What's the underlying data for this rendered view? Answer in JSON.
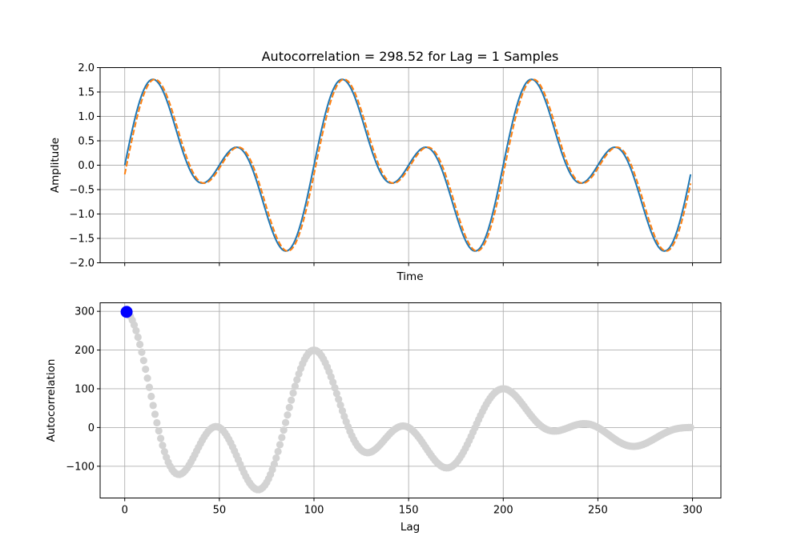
{
  "chart_data": [
    {
      "type": "line",
      "title": "Autocorrelation = 298.52 for Lag = 1 Samples",
      "xlabel": "Time",
      "ylabel": "Amplitude",
      "xlim": [
        -13,
        315
      ],
      "ylim": [
        -2.0,
        2.0
      ],
      "xticks": [
        0,
        50,
        100,
        150,
        200,
        250,
        300
      ],
      "xtick_labels_shown": false,
      "yticks": [
        -2.0,
        -1.5,
        -1.0,
        -0.5,
        0.0,
        0.5,
        1.0,
        1.5,
        2.0
      ],
      "ytick_labels": [
        "−2.0",
        "−1.5",
        "−1.0",
        "−0.5",
        "0.0",
        "0.5",
        "1.0",
        "1.5",
        "2.0"
      ],
      "grid": true,
      "signal": {
        "samples": 300,
        "components": [
          {
            "amplitude": 1,
            "cycles_per_sample": 0.01,
            "phase": 0
          },
          {
            "amplitude": 1,
            "cycles_per_sample": 0.02,
            "phase": 0
          }
        ]
      },
      "series": [
        {
          "style": "solid",
          "color": "#1f77b4",
          "lag": 0
        },
        {
          "style": "dashed",
          "color": "#ff7f0e",
          "lag": 1
        }
      ]
    },
    {
      "type": "scatter",
      "xlabel": "Lag",
      "ylabel": "Autocorrelation",
      "xlim": [
        -13,
        315
      ],
      "ylim": [
        -182,
        322
      ],
      "xticks": [
        0,
        50,
        100,
        150,
        200,
        250,
        300
      ],
      "xtick_labels": [
        "0",
        "50",
        "100",
        "150",
        "200",
        "250",
        "300"
      ],
      "yticks": [
        -100,
        0,
        100,
        200,
        300
      ],
      "ytick_labels": [
        "−100",
        "0",
        "100",
        "200",
        "300"
      ],
      "grid": true,
      "points": {
        "lags": [
          0,
          299
        ],
        "values": "autocorrelation of the signal at each lag",
        "color": "#d3d3d3"
      },
      "highlight": {
        "lag": 1,
        "value": 298.52,
        "color": "#0000ff"
      }
    }
  ]
}
